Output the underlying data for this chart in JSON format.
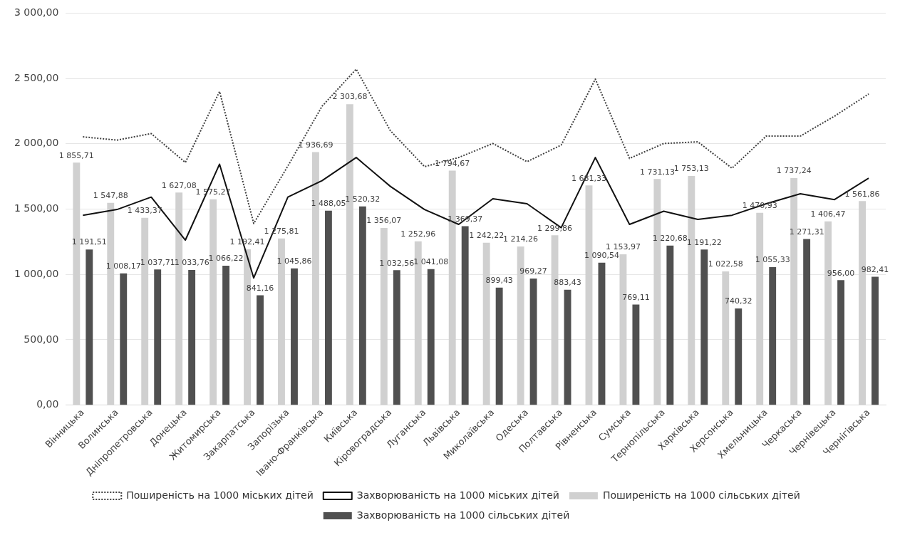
{
  "chart_data": {
    "type": "bar",
    "categories": [
      "Вінницька",
      "Волинська",
      "Дніпропетровська",
      "Донецька",
      "Житомирська",
      "Закарпатська",
      "Запорізька",
      "Івано-Франківська",
      "Київська",
      "Кіровоградська",
      "Луганська",
      "Львівська",
      "Миколаївська",
      "Одеська",
      "Полтавська",
      "Рівненська",
      "Сумська",
      "Тернопільська",
      "Харківська",
      "Херсонська",
      "Хмельницька",
      "Черкаська",
      "Чернівецька",
      "Чернігівська"
    ],
    "series": [
      {
        "name": "Поширеність на 1000 сільських дітей",
        "color": "#d0d0d0",
        "values": [
          1855.71,
          1547.88,
          1433.37,
          1627.08,
          1575.27,
          1192.41,
          1275.81,
          1936.69,
          2303.68,
          1356.07,
          1252.96,
          1794.67,
          1242.22,
          1214.26,
          1299.86,
          1681.33,
          1153.97,
          1731.13,
          1753.13,
          1022.58,
          1470.93,
          1737.24,
          1406.47,
          1561.86
        ],
        "value_labels": [
          "1 855,71",
          "1 547,88",
          "1 433,37",
          "1 627,08",
          "1 575,27",
          "1 192,41",
          "1 275,81",
          "1 936,69",
          "2 303,68",
          "1 356,07",
          "1 252,96",
          "1 794,67",
          "1 242,22",
          "1 214,26",
          "1 299,86",
          "1 681,33",
          "1 153,97",
          "1 731,13",
          "1 753,13",
          "1 022,58",
          "1 470,93",
          "1 737,24",
          "1 406,47",
          "1 561,86"
        ]
      },
      {
        "name": "Захворюваність на 1000 сільських дітей",
        "color": "#505050",
        "values": [
          1191.51,
          1008.17,
          1037.71,
          1033.76,
          1066.22,
          841.16,
          1045.86,
          1488.05,
          1520.32,
          1032.56,
          1041.08,
          1369.37,
          899.43,
          969.27,
          883.43,
          1090.54,
          769.11,
          1220.68,
          1191.22,
          740.32,
          1055.33,
          1271.31,
          956.0,
          982.41
        ],
        "value_labels": [
          "1 191,51",
          "1 008,17",
          "1 037,71",
          "1 033,76",
          "1 066,22",
          "841,16",
          "1 045,86",
          "1 488,05",
          "1 520,32",
          "1 032,56",
          "1 041,08",
          "1 369,37",
          "899,43",
          "969,27",
          "883,43",
          "1 090,54",
          "769,11",
          "1 220,68",
          "1 191,22",
          "740,32",
          "1 055,33",
          "1 271,31",
          "956,00",
          "982,41"
        ]
      },
      {
        "name": "Поширеність на 1000 міських дітей",
        "type": "line",
        "color": "#404040",
        "line_style": "dotted",
        "values": [
          2053,
          2028,
          2078,
          1857,
          2400,
          1390,
          1830,
          2287,
          2571,
          2100,
          1825,
          1895,
          2002,
          1863,
          1990,
          2495,
          1888,
          2002,
          2015,
          1813,
          2059,
          2059,
          2211,
          2381
        ]
      },
      {
        "name": "Захворюваність на 1000 міських дітей",
        "type": "line",
        "color": "#111111",
        "line_style": "solid",
        "values": [
          1453,
          1497,
          1592,
          1263,
          1844,
          973,
          1592,
          1718,
          1895,
          1674,
          1497,
          1383,
          1579,
          1541,
          1358,
          1895,
          1383,
          1484,
          1421,
          1453,
          1541,
          1617,
          1573,
          1737
        ]
      }
    ],
    "ylim": [
      0,
      3000
    ],
    "yticks": [
      {
        "value": 0,
        "label": "0,00"
      },
      {
        "value": 500,
        "label": "500,00"
      },
      {
        "value": 1000,
        "label": "1 000,00"
      },
      {
        "value": 1500,
        "label": "1 500,00"
      },
      {
        "value": 2000,
        "label": "2 000,00"
      },
      {
        "value": 2500,
        "label": "2 500,00"
      },
      {
        "value": 3000,
        "label": "3 000,00"
      }
    ],
    "grid": "y",
    "legend": "bottom",
    "marker": "none"
  }
}
